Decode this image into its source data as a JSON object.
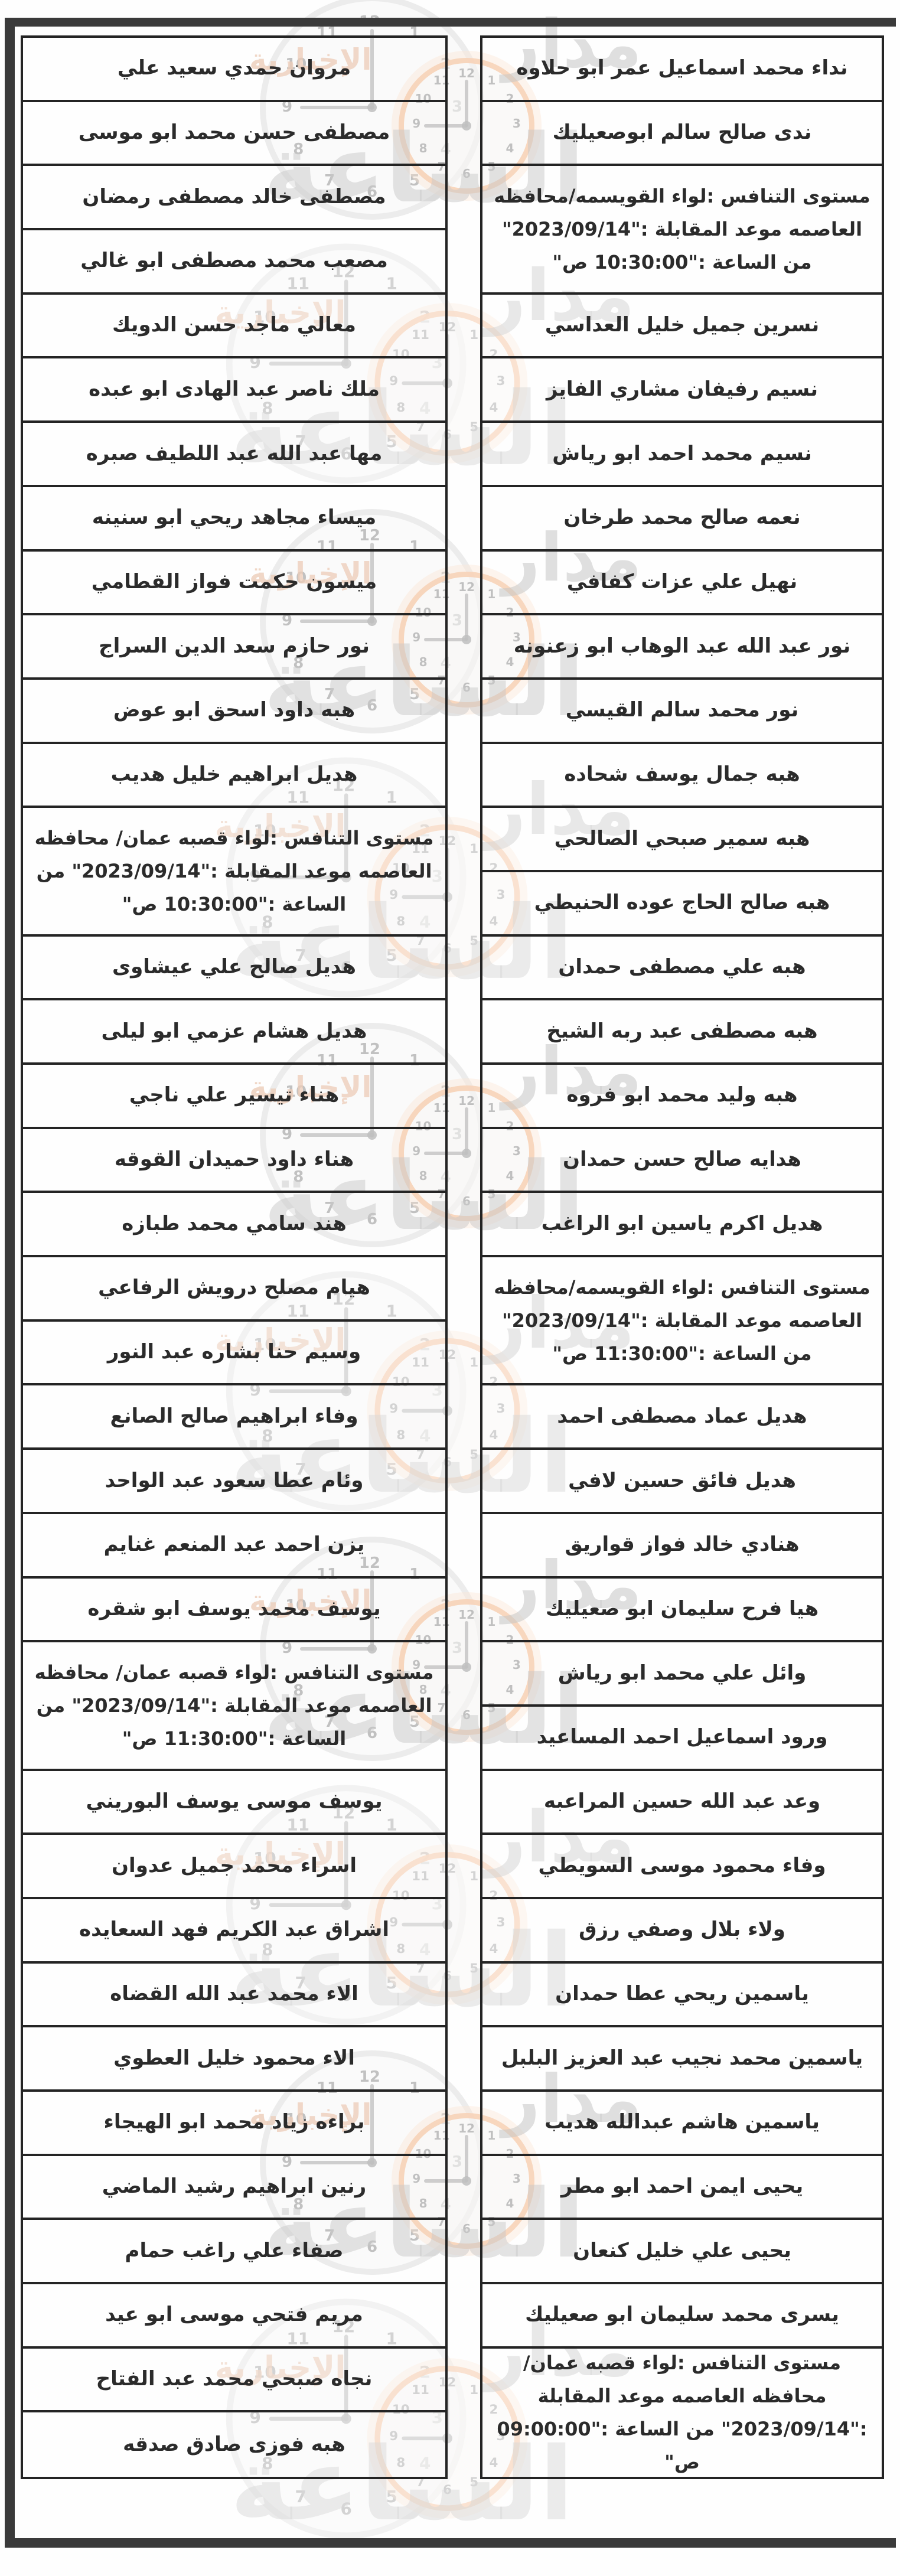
{
  "table": {
    "columns": [
      {
        "side": "right",
        "cells": [
          {
            "type": "name",
            "text": "نداء محمد اسماعيل عمر ابو حلاوه"
          },
          {
            "type": "name",
            "text": "ندى صالح سالم ابوصعيليك"
          },
          {
            "type": "level",
            "text": "مستوى التنافس :لواء القويسمه/محافظه العاصمه موعد المقابلة :\"2023/09/14\" من الساعة :\"10:30:00 ص\""
          },
          {
            "type": "name",
            "text": "نسرين جميل خليل العداسي"
          },
          {
            "type": "name",
            "text": "نسيم رفيفان مشاري الفايز"
          },
          {
            "type": "name",
            "text": "نسيم محمد احمد ابو رياش"
          },
          {
            "type": "name",
            "text": "نعمه صالح محمد طرخان"
          },
          {
            "type": "name",
            "text": "نهيل علي عزات كفافي"
          },
          {
            "type": "name",
            "text": "نور عبد الله عبد الوهاب ابو زعنونه"
          },
          {
            "type": "name",
            "text": "نور محمد سالم القيسي"
          },
          {
            "type": "name",
            "text": "هبه جمال يوسف شحاده"
          },
          {
            "type": "name",
            "text": "هبه سمير صبحي الصالحي"
          },
          {
            "type": "name",
            "text": "هبه صالح الحاج عوده الحنيطي"
          },
          {
            "type": "name",
            "text": "هبه علي مصطفى حمدان"
          },
          {
            "type": "name",
            "text": "هبه مصطفى عبد ربه الشيخ"
          },
          {
            "type": "name",
            "text": "هبه وليد محمد ابو فروه"
          },
          {
            "type": "name",
            "text": "هدايه صالح حسن حمدان"
          },
          {
            "type": "name",
            "text": "هديل اكرم ياسين ابو الراغب"
          },
          {
            "type": "level",
            "text": "مستوى التنافس :لواء القويسمه/محافظه العاصمه موعد المقابلة :\"2023/09/14\" من الساعة :\"11:30:00 ص\""
          },
          {
            "type": "name",
            "text": "هديل عماد مصطفى احمد"
          },
          {
            "type": "name",
            "text": "هديل فائق حسين لافي"
          },
          {
            "type": "name",
            "text": "هنادي خالد فواز قواريق"
          },
          {
            "type": "name",
            "text": "هيا فرح سليمان ابو صعيليك"
          },
          {
            "type": "name",
            "text": "وائل علي محمد ابو رياش"
          },
          {
            "type": "name",
            "text": "ورود اسماعيل احمد المساعيد"
          },
          {
            "type": "name",
            "text": "وعد عبد الله حسين المراعبه"
          },
          {
            "type": "name",
            "text": "وفاء محمود موسى السويطي"
          },
          {
            "type": "name",
            "text": "ولاء بلال وصفي رزق"
          },
          {
            "type": "name",
            "text": "ياسمين ريحي عطا حمدان"
          },
          {
            "type": "name",
            "text": "ياسمين محمد نجيب عبد العزيز البلبل"
          },
          {
            "type": "name",
            "text": "ياسمين هاشم عبدالله هديب"
          },
          {
            "type": "name",
            "text": "يحيى ايمن احمد ابو مطر"
          },
          {
            "type": "name",
            "text": "يحيى علي خليل كنعان"
          },
          {
            "type": "name",
            "text": "يسرى محمد سليمان ابو صعيليك"
          },
          {
            "type": "level",
            "text": "مستوى التنافس :لواء قصبه عمان/ محافظه العاصمه موعد المقابلة :\"2023/09/14\" من الساعة :\"09:00:00 ص\""
          }
        ]
      },
      {
        "side": "left",
        "cells": [
          {
            "type": "name",
            "text": "مروان حمدي سعيد علي"
          },
          {
            "type": "name",
            "text": "مصطفى حسن محمد ابو موسى"
          },
          {
            "type": "name",
            "text": "مصطفى خالد مصطفى رمضان"
          },
          {
            "type": "name",
            "text": "مصعب محمد مصطفى ابو غالي"
          },
          {
            "type": "name",
            "text": "معالي ماجد حسن الدويك"
          },
          {
            "type": "name",
            "text": "ملك ناصر عبد الهادى ابو عبده"
          },
          {
            "type": "name",
            "text": "مها عبد الله عبد اللطيف صبره"
          },
          {
            "type": "name",
            "text": "ميساء مجاهد ريحي ابو سنينه"
          },
          {
            "type": "name",
            "text": "ميسون حكمت فواز القطامي"
          },
          {
            "type": "name",
            "text": "نور حازم سعد الدين السراج"
          },
          {
            "type": "name",
            "text": "هبه داود اسحق ابو عوض"
          },
          {
            "type": "name",
            "text": "هديل ابراهيم خليل هديب"
          },
          {
            "type": "level",
            "text": "مستوى التنافس :لواء قصبه عمان/ محافظه العاصمه موعد المقابلة :\"2023/09/14\" من الساعة :\"10:30:00 ص\""
          },
          {
            "type": "name",
            "text": "هديل صالح علي عيشاوى"
          },
          {
            "type": "name",
            "text": "هديل هشام عزمي ابو ليلى"
          },
          {
            "type": "name",
            "text": "هناء تيسير علي ناجي"
          },
          {
            "type": "name",
            "text": "هناء داود حميدان القوقه"
          },
          {
            "type": "name",
            "text": "هند سامي محمد طبازه"
          },
          {
            "type": "name",
            "text": "هيام مصلح درويش الرفاعي"
          },
          {
            "type": "name",
            "text": "وسيم حنا بشاره عبد النور"
          },
          {
            "type": "name",
            "text": "وفاء ابراهيم صالح الصانع"
          },
          {
            "type": "name",
            "text": "وئام عطا سعود عبد الواحد"
          },
          {
            "type": "name",
            "text": "يزن احمد عبد المنعم غنايم"
          },
          {
            "type": "name",
            "text": "يوسف محمد يوسف ابو شقره"
          },
          {
            "type": "level",
            "text": "مستوى التنافس :لواء قصبه عمان/ محافظه العاصمه موعد المقابلة :\"2023/09/14\" من الساعة :\"11:30:00 ص\""
          },
          {
            "type": "name",
            "text": "يوسف موسى يوسف البوريني"
          },
          {
            "type": "name",
            "text": "اسراء محمد جميل عدوان"
          },
          {
            "type": "name",
            "text": "اشراق عبد الكريم فهد السعايده"
          },
          {
            "type": "name",
            "text": "الاء محمد عبد الله القضاه"
          },
          {
            "type": "name",
            "text": "الاء محمود خليل العطوي"
          },
          {
            "type": "name",
            "text": "براءه زياد محمد ابو الهيجاء"
          },
          {
            "type": "name",
            "text": "رنين ابراهيم رشيد الماضي"
          },
          {
            "type": "name",
            "text": "صفاء علي راغب حمام"
          },
          {
            "type": "name",
            "text": "مريم فتحي موسى ابو عيد"
          },
          {
            "type": "name",
            "text": "نجاه صبحي محمد عبد الفتاح"
          },
          {
            "type": "name",
            "text": "هبه فوزى صادق صدقه"
          }
        ]
      }
    ]
  },
  "watermark": {
    "brand_top": "مدار",
    "brand_main": "الساعة",
    "brand_sub": "الإخبارية",
    "clock_numbers": [
      "12",
      "1",
      "2",
      "3",
      "4",
      "5",
      "6",
      "7",
      "8",
      "9",
      "10",
      "11"
    ],
    "accent_color": "#f3b182",
    "text_color": "#a6a6a6"
  }
}
